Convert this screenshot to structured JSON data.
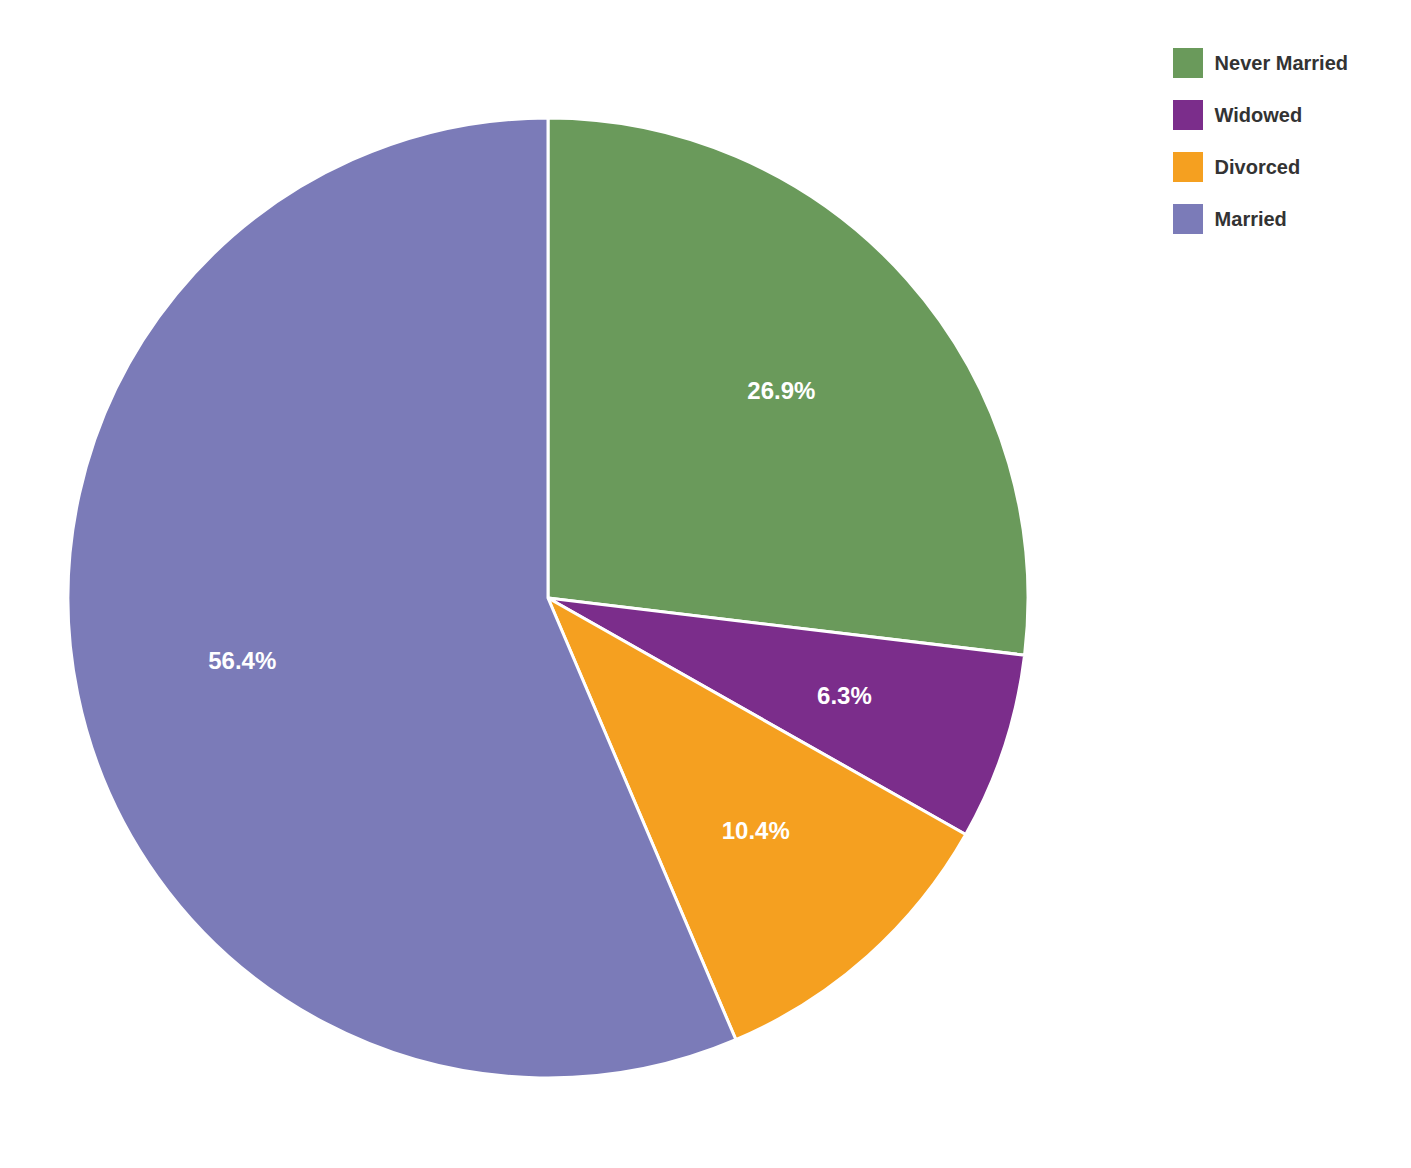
{
  "chart_data": {
    "type": "pie",
    "categories": [
      "Never Married",
      "Widowed",
      "Divorced",
      "Married"
    ],
    "values": [
      26.9,
      6.3,
      10.4,
      56.4
    ],
    "value_labels": [
      "26.9%",
      "6.3%",
      "10.4%",
      "56.4%"
    ],
    "colors": [
      "#6a9a5b",
      "#7b2d8b",
      "#f5a020",
      "#7b7bb8"
    ],
    "legend": "upper right",
    "data_labels": true
  }
}
